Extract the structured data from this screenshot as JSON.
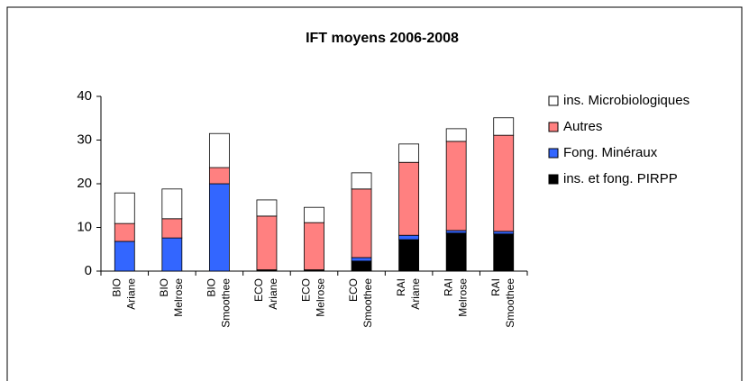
{
  "chart_data": {
    "type": "stacked_bar",
    "title": "IFT moyens 2006-2008",
    "categories": [
      [
        "BIO",
        "Ariane"
      ],
      [
        "BIO",
        "Melrose"
      ],
      [
        "BIO",
        "Smoothee"
      ],
      [
        "ECO",
        "Ariane"
      ],
      [
        "ECO",
        "Melrose"
      ],
      [
        "ECO",
        "Smoothee"
      ],
      [
        "RAI",
        "Ariane"
      ],
      [
        "RAI",
        "Melrose"
      ],
      [
        "RAI",
        "Smoothee"
      ]
    ],
    "series": [
      {
        "name": "ins. et fong. PIRPP",
        "color": "#000000",
        "values": [
          0,
          0,
          0,
          0.3,
          0.3,
          2.3,
          7.2,
          8.7,
          8.5
        ]
      },
      {
        "name": "Fong. Minéraux",
        "color": "#3366ff",
        "values": [
          6.8,
          7.6,
          20.0,
          0,
          0,
          0.8,
          1.0,
          0.6,
          0.6
        ]
      },
      {
        "name": "Autres",
        "color": "#ff8080",
        "values": [
          4.1,
          4.4,
          3.7,
          12.3,
          10.8,
          15.7,
          16.7,
          20.4,
          22.0
        ]
      },
      {
        "name": "ins. Microbiologiques",
        "color": "#ffffff",
        "values": [
          7.0,
          6.8,
          7.8,
          3.7,
          3.5,
          3.7,
          4.2,
          2.9,
          4.0
        ]
      }
    ],
    "ylim": [
      0,
      40
    ],
    "yticks": [
      0,
      10,
      20,
      30,
      40
    ],
    "grid": false,
    "legend": "right"
  }
}
